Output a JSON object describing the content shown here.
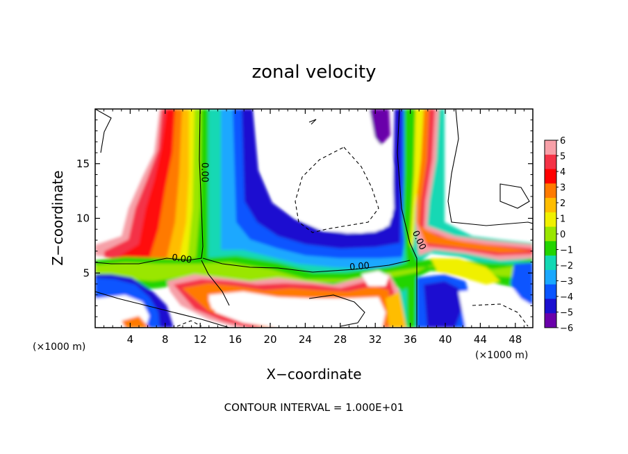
{
  "chart_data": {
    "type": "heatmap",
    "title": "zonal velocity",
    "xlabel": "X−coordinate",
    "ylabel": "Z−coordinate",
    "x_unit_left": "(×1000 m)",
    "x_unit_right": "(×1000 m)",
    "footer": "CONTOUR INTERVAL = 1.000E+01",
    "xlim": [
      0,
      50
    ],
    "ylim": [
      0,
      20
    ],
    "x_ticks": [
      4,
      8,
      12,
      16,
      20,
      24,
      28,
      32,
      36,
      40,
      44,
      48
    ],
    "y_ticks": [
      5,
      10,
      15
    ],
    "contour_labels": [
      {
        "text": "0.00",
        "x": 12.5,
        "y": 14.2,
        "rotation": 90
      },
      {
        "text": "0.00",
        "x": 9.9,
        "y": 6.3,
        "rotation": 8
      },
      {
        "text": "0.00",
        "x": 30.2,
        "y": 5.6,
        "rotation": -5
      },
      {
        "text": "0.00",
        "x": 37.0,
        "y": 8.0,
        "rotation": 65
      }
    ],
    "colorbar": {
      "values": [
        6,
        5,
        4,
        3,
        2,
        1,
        0,
        -1,
        -2,
        -3,
        -4,
        -5,
        -6
      ],
      "labels": [
        "6",
        "5",
        "4",
        "3",
        "2",
        "1",
        "0",
        "−1",
        "−2",
        "−3",
        "−4",
        "−5",
        "−6"
      ],
      "colors": [
        "#f7a0a8",
        "#f43246",
        "#ff0000",
        "#ff7a00",
        "#ffbd00",
        "#f0f000",
        "#9ae600",
        "#22d400",
        "#13d8b4",
        "#1aa8ff",
        "#0a55ff",
        "#1a10d0",
        "#6a00aa"
      ]
    }
  }
}
